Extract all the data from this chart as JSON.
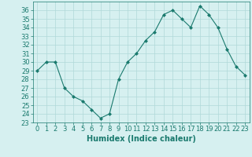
{
  "x": [
    0,
    1,
    2,
    3,
    4,
    5,
    6,
    7,
    8,
    9,
    10,
    11,
    12,
    13,
    14,
    15,
    16,
    17,
    18,
    19,
    20,
    21,
    22,
    23
  ],
  "y": [
    29,
    30,
    30,
    27,
    26,
    25.5,
    24.5,
    23.5,
    24,
    28,
    30,
    31,
    32.5,
    33.5,
    35.5,
    36,
    35,
    34,
    36.5,
    35.5,
    34,
    31.5,
    29.5,
    28.5
  ],
  "line_color": "#1a7a6e",
  "marker": "D",
  "marker_size": 2,
  "bg_color": "#d6f0f0",
  "grid_color": "#b0d8d8",
  "xlabel": "Humidex (Indice chaleur)",
  "xlim": [
    -0.5,
    23.5
  ],
  "ylim": [
    23,
    37
  ],
  "yticks": [
    23,
    24,
    25,
    26,
    27,
    28,
    29,
    30,
    31,
    32,
    33,
    34,
    35,
    36
  ],
  "xticks": [
    0,
    1,
    2,
    3,
    4,
    5,
    6,
    7,
    8,
    9,
    10,
    11,
    12,
    13,
    14,
    15,
    16,
    17,
    18,
    19,
    20,
    21,
    22,
    23
  ],
  "label_fontsize": 7,
  "tick_fontsize": 6
}
